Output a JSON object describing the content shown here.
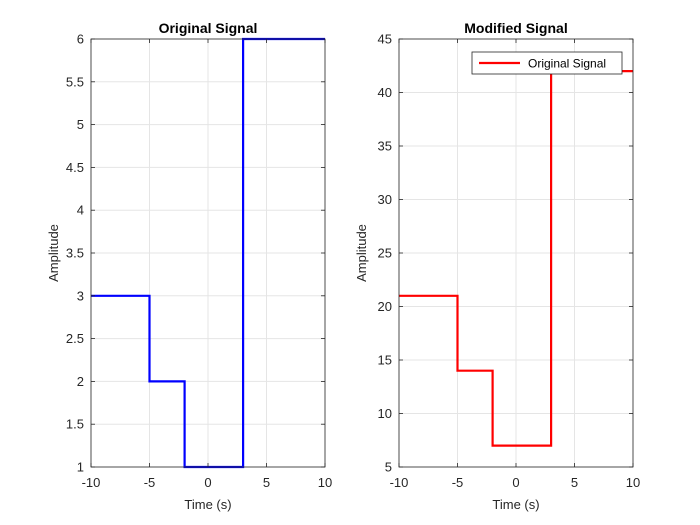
{
  "colors": {
    "series_left": "#0000ff",
    "series_right": "#ff0000",
    "axis": "#262626",
    "grid": "#e5e5e5"
  },
  "chart_data": [
    {
      "type": "line",
      "title": "Original Signal",
      "xlabel": "Time (s)",
      "ylabel": "Amplitude",
      "xlim": [
        -10,
        10
      ],
      "ylim": [
        1,
        6
      ],
      "xticks": [
        -10,
        -5,
        0,
        5,
        10
      ],
      "yticks": [
        1,
        1.5,
        2,
        2.5,
        3,
        3.5,
        4,
        4.5,
        5,
        5.5,
        6
      ],
      "xtick_labels": [
        "-10",
        "-5",
        "0",
        "5",
        "10"
      ],
      "ytick_labels": [
        "1",
        "1.5",
        "2",
        "2.5",
        "3",
        "3.5",
        "4",
        "4.5",
        "5",
        "5.5",
        "6"
      ],
      "grid": true,
      "legend": null,
      "series": [
        {
          "color": "#0000ff",
          "x": [
            -10,
            -5,
            -5,
            -2,
            -2,
            3,
            3,
            10
          ],
          "y": [
            3,
            3,
            2,
            2,
            1,
            1,
            6,
            6
          ]
        }
      ]
    },
    {
      "type": "line",
      "title": "Modified Signal",
      "xlabel": "Time (s)",
      "ylabel": "Amplitude",
      "xlim": [
        -10,
        10
      ],
      "ylim": [
        5,
        45
      ],
      "xticks": [
        -10,
        -5,
        0,
        5,
        10
      ],
      "yticks": [
        5,
        10,
        15,
        20,
        25,
        30,
        35,
        40,
        45
      ],
      "xtick_labels": [
        "-10",
        "-5",
        "0",
        "5",
        "10"
      ],
      "ytick_labels": [
        "5",
        "10",
        "15",
        "20",
        "25",
        "30",
        "35",
        "40",
        "45"
      ],
      "grid": true,
      "legend": {
        "placement": "top-right",
        "entries": [
          "Original Signal"
        ]
      },
      "series": [
        {
          "name": "Original Signal",
          "color": "#ff0000",
          "x": [
            -10,
            -5,
            -5,
            -2,
            -2,
            3,
            3,
            10
          ],
          "y": [
            21,
            21,
            14,
            14,
            7,
            7,
            42,
            42
          ]
        }
      ]
    }
  ]
}
